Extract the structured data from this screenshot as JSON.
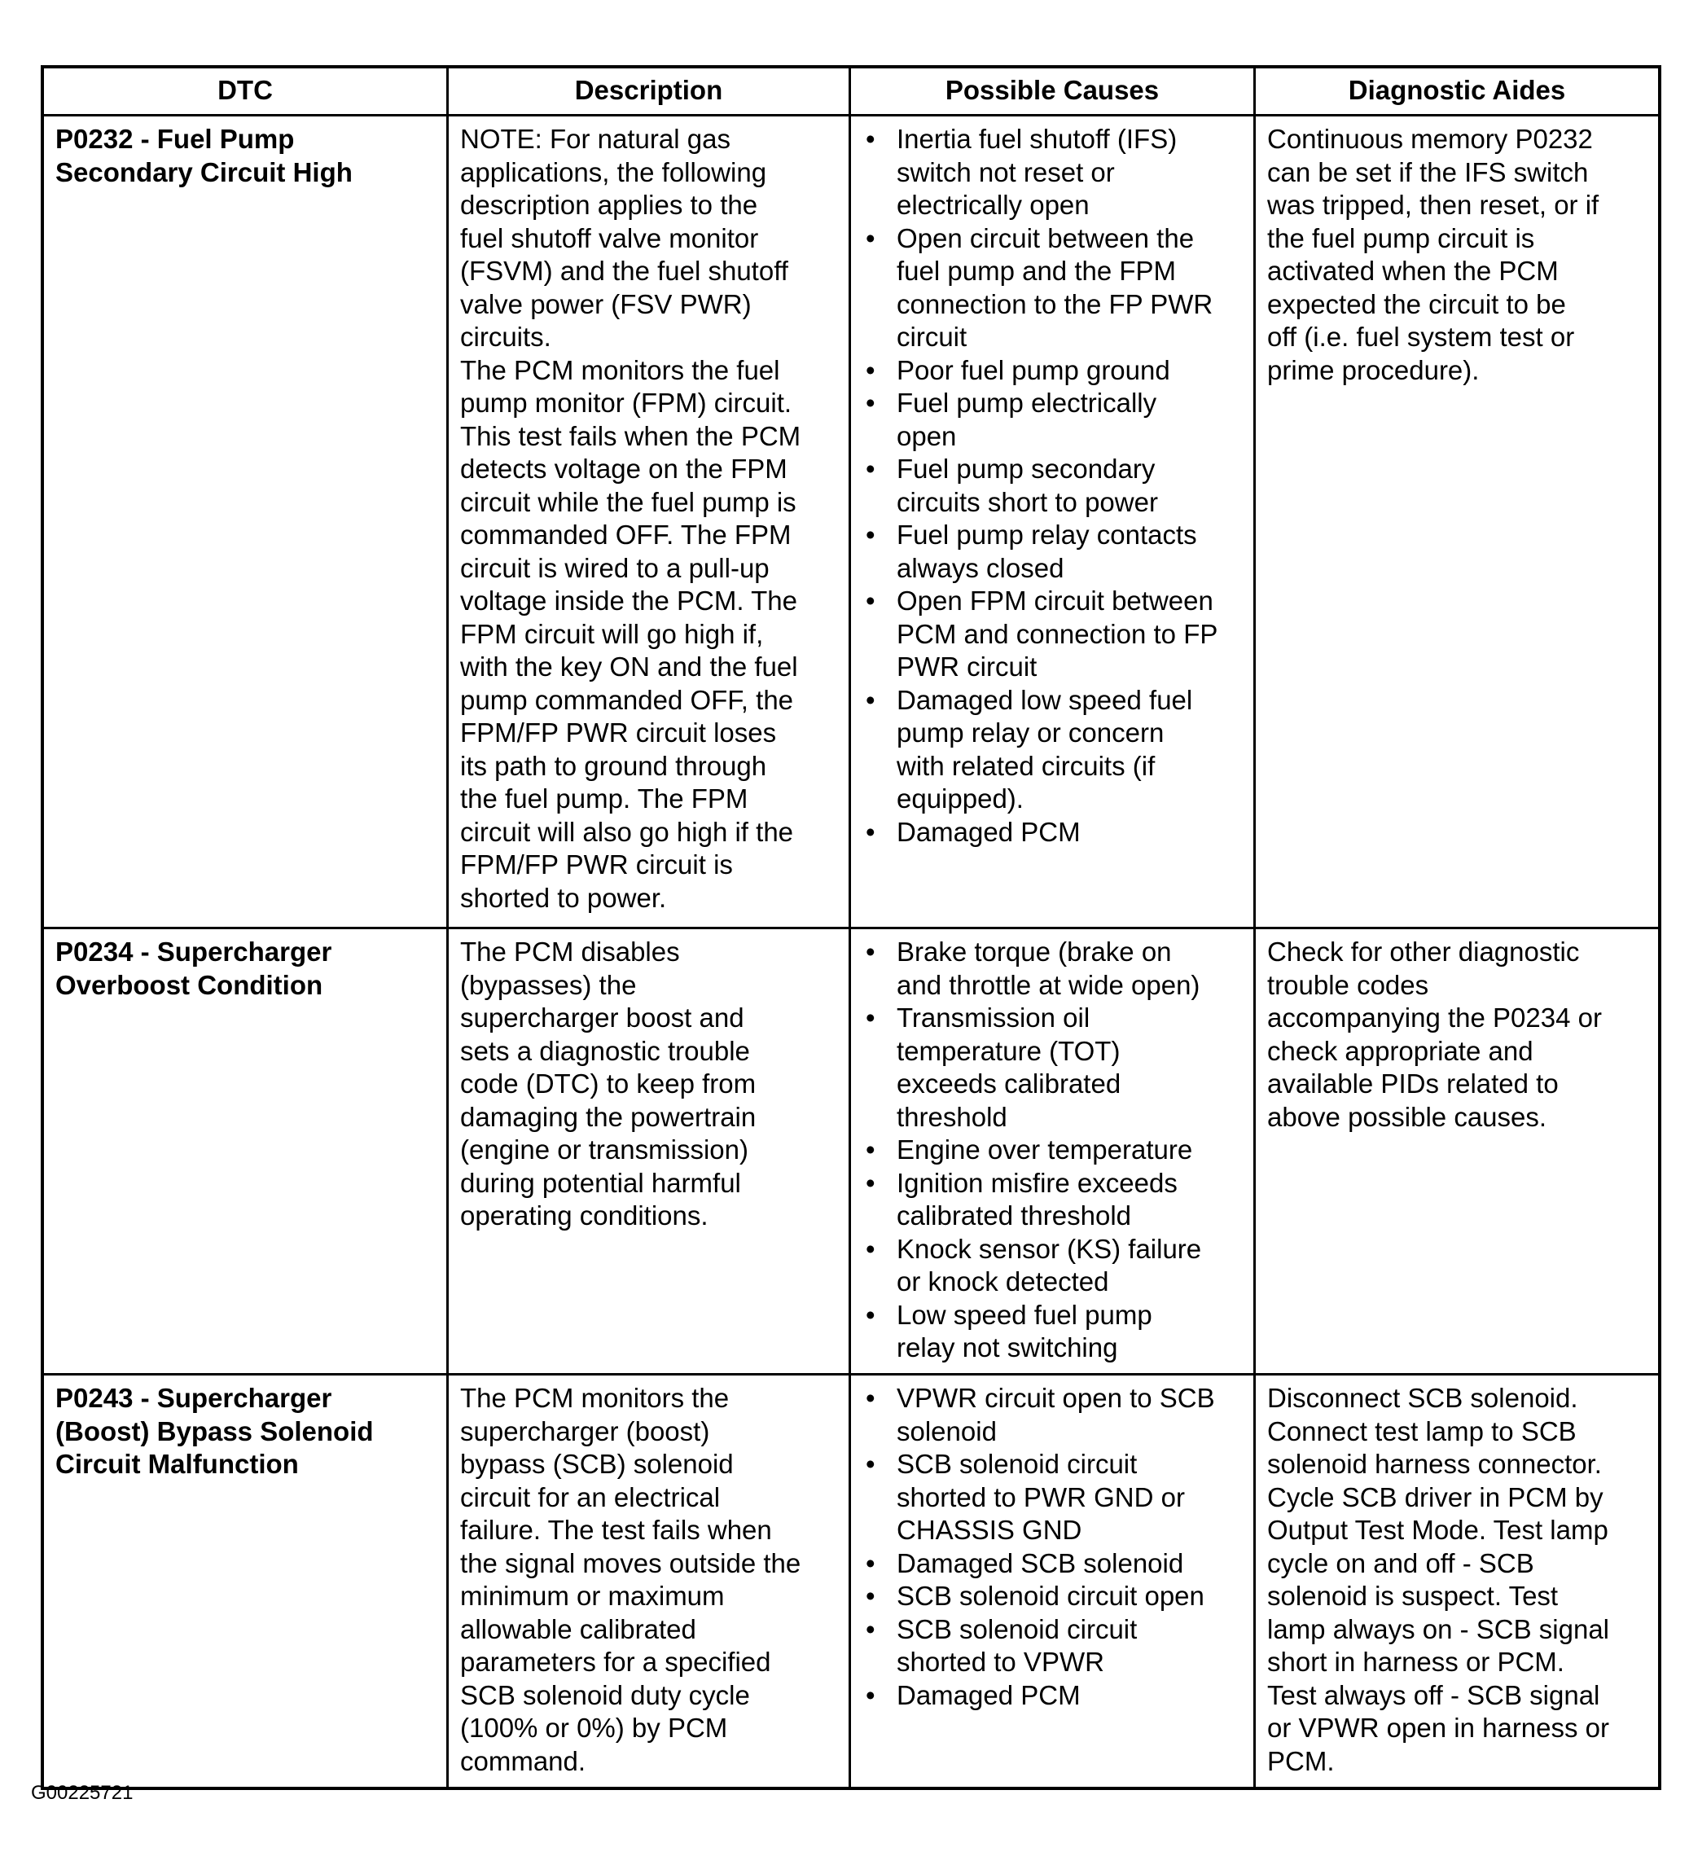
{
  "headers": [
    "DTC",
    "Description",
    "Possible Causes",
    "Diagnostic Aides"
  ],
  "rows": [
    {
      "dtc": [
        "P0232 - Fuel Pump",
        "Secondary Circuit High"
      ],
      "description": [
        "NOTE: For natural gas",
        "applications, the following",
        "description applies to the",
        "fuel shutoff valve monitor",
        "(FSVM) and the fuel shutoff",
        "valve power (FSV PWR)",
        "circuits.",
        "The PCM monitors the fuel",
        "pump monitor (FPM) circuit.",
        "This test fails when the PCM",
        "detects voltage on the FPM",
        "circuit while the fuel pump is",
        "commanded OFF. The FPM",
        "circuit is wired to a pull-up",
        "voltage inside the PCM. The",
        "FPM circuit will go high if,",
        "with the key ON and the fuel",
        "pump commanded OFF, the",
        "FPM/FP PWR circuit loses",
        "its path to ground through",
        "the fuel pump. The FPM",
        "circuit will also go high if the",
        "FPM/FP PWR circuit is",
        "shorted to power."
      ],
      "causes": [
        [
          "Inertia fuel shutoff (IFS)",
          "switch not reset or",
          "electrically open"
        ],
        [
          "Open circuit between the",
          "fuel pump and the FPM",
          "connection to the FP PWR",
          "circuit"
        ],
        [
          "Poor fuel pump ground"
        ],
        [
          "Fuel pump electrically",
          "open"
        ],
        [
          "Fuel pump secondary",
          "circuits short to power"
        ],
        [
          "Fuel pump relay contacts",
          "always closed"
        ],
        [
          "Open FPM circuit between",
          "PCM and connection to FP",
          "PWR circuit"
        ],
        [
          "Damaged low speed fuel",
          "pump relay or concern",
          "with related circuits (if",
          "equipped)."
        ],
        [
          "Damaged PCM"
        ]
      ],
      "aides": [
        "Continuous memory P0232",
        "can be set if the IFS switch",
        "was tripped, then reset, or if",
        "the fuel pump circuit is",
        "activated when the PCM",
        "expected the circuit to be",
        "off (i.e. fuel system test or",
        "prime procedure)."
      ]
    },
    {
      "dtc": [
        "P0234 - Supercharger",
        "Overboost Condition"
      ],
      "description": [
        "The PCM disables",
        "(bypasses) the",
        "supercharger boost and",
        "sets a diagnostic trouble",
        "code (DTC) to keep from",
        "damaging the powertrain",
        "(engine or transmission)",
        "during potential harmful",
        "operating conditions."
      ],
      "causes": [
        [
          "Brake torque (brake on",
          "and throttle at wide open)"
        ],
        [
          "Transmission oil",
          "temperature (TOT)",
          "exceeds calibrated",
          "threshold"
        ],
        [
          "Engine over temperature"
        ],
        [
          "Ignition misfire exceeds",
          "calibrated threshold"
        ],
        [
          "Knock sensor (KS) failure",
          "or knock detected"
        ],
        [
          "Low speed fuel pump",
          "relay not switching"
        ]
      ],
      "aides": [
        "Check for other diagnostic",
        "trouble codes",
        "accompanying the P0234 or",
        "check appropriate and",
        "available PIDs related to",
        "above possible causes."
      ]
    },
    {
      "dtc": [
        "P0243 - Supercharger",
        "(Boost) Bypass Solenoid",
        "Circuit Malfunction"
      ],
      "description": [
        "The PCM monitors the",
        "supercharger (boost)",
        "bypass (SCB) solenoid",
        "circuit for an electrical",
        "failure. The test fails when",
        "the signal moves outside the",
        "minimum or maximum",
        "allowable calibrated",
        "parameters for a specified",
        "SCB solenoid duty cycle",
        "(100% or 0%) by PCM",
        "command."
      ],
      "causes": [
        [
          "VPWR circuit open to SCB",
          "solenoid"
        ],
        [
          "SCB solenoid circuit",
          "shorted to PWR GND or",
          "CHASSIS GND"
        ],
        [
          "Damaged SCB solenoid"
        ],
        [
          "SCB solenoid circuit open"
        ],
        [
          "SCB solenoid circuit",
          "shorted to VPWR"
        ],
        [
          "Damaged PCM"
        ]
      ],
      "aides": [
        "Disconnect SCB solenoid.",
        "Connect test lamp to SCB",
        "solenoid harness connector.",
        "Cycle SCB driver in PCM by",
        "Output Test Mode. Test lamp",
        "cycle on and off - SCB",
        "solenoid is suspect. Test",
        "lamp always on - SCB signal",
        "short in harness or PCM.",
        "Test always off - SCB signal",
        "or VPWR open in harness or",
        "PCM."
      ]
    }
  ],
  "caption": "G00225721"
}
